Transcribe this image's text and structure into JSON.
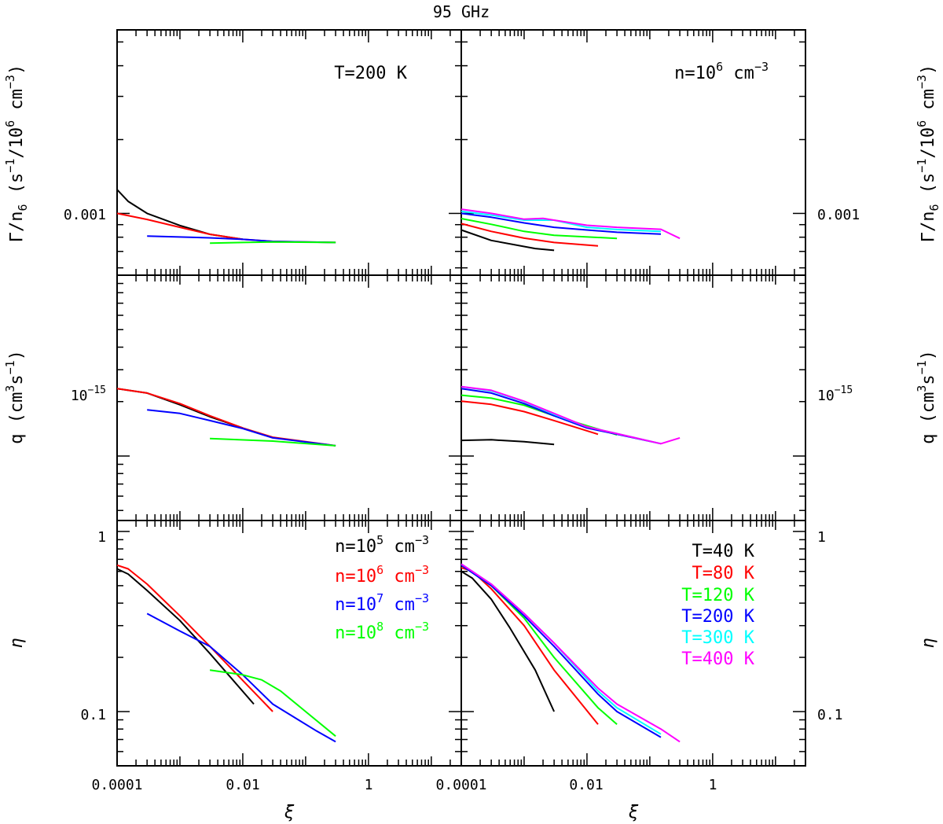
{
  "figure_title": "95 GHz",
  "ylabels": {
    "gamma": [
      "Γ/n",
      "6",
      " (s",
      "−1",
      "/10",
      "6",
      " cm",
      "−3",
      ")"
    ],
    "q": [
      "q  (cm",
      "3",
      "s",
      "−1",
      ")"
    ],
    "eta": "η"
  },
  "xlabel": "ξ",
  "xtick_labels": [
    "0.0001",
    "0.01",
    "1"
  ],
  "ytick_labels": {
    "gamma": "0.001",
    "q_base": "10",
    "q_exp": "−15",
    "eta": [
      "1",
      "0.1"
    ]
  },
  "panel_labels": {
    "left_top": "T=200 K",
    "right_top": {
      "base": "n=10",
      "exp": "6",
      "unit": " cm",
      "unit_exp": "−3"
    }
  },
  "legend_density": [
    {
      "base": "n=10",
      "exp": "5",
      "unit": " cm",
      "unit_exp": "−3",
      "color": "#000000"
    },
    {
      "base": "n=10",
      "exp": "6",
      "unit": " cm",
      "unit_exp": "−3",
      "color": "#ff0000"
    },
    {
      "base": "n=10",
      "exp": "7",
      "unit": " cm",
      "unit_exp": "−3",
      "color": "#0000ff"
    },
    {
      "base": "n=10",
      "exp": "8",
      "unit": " cm",
      "unit_exp": "−3",
      "color": "#00ff00"
    }
  ],
  "legend_temperature": [
    {
      "label": "T=40 K",
      "color": "#000000"
    },
    {
      "label": "T=80 K",
      "color": "#ff0000"
    },
    {
      "label": "T=120 K",
      "color": "#00ff00"
    },
    {
      "label": "T=200 K",
      "color": "#0000ff"
    },
    {
      "label": "T=300 K",
      "color": "#00ffff"
    },
    {
      "label": "T=400 K",
      "color": "#ff00ff"
    }
  ],
  "chart_data": [
    {
      "type": "line",
      "panel": "gamma-left",
      "title": "T=200 K",
      "xlabel": "",
      "ylabel": "Γ/n6 (s−1/10^6 cm−3)",
      "xscale": "log",
      "yscale": "log",
      "xlim": [
        0.0001,
        30
      ],
      "ylim": [
        0.00056,
        0.0056
      ],
      "series": [
        {
          "name": "n=10^5 cm^-3",
          "color": "#000000",
          "x": [
            0.0001,
            0.00015,
            0.0003,
            0.001,
            0.003,
            0.01
          ],
          "y": [
            0.00125,
            0.00112,
            0.001,
            0.000893,
            0.000822,
            0.000784
          ]
        },
        {
          "name": "n=10^6 cm^-3",
          "color": "#ff0000",
          "x": [
            0.0001,
            0.0003,
            0.001,
            0.003,
            0.01,
            0.03,
            0.3
          ],
          "y": [
            0.001,
            0.000945,
            0.000878,
            0.000822,
            0.000784,
            0.000769,
            0.000761
          ]
        },
        {
          "name": "n=10^7 cm^-3",
          "color": "#0000ff",
          "x": [
            0.0003,
            0.003,
            0.01,
            0.03,
            0.3
          ],
          "y": [
            0.000808,
            0.000795,
            0.000784,
            0.000769,
            0.000761
          ]
        },
        {
          "name": "n=10^8 cm^-3",
          "color": "#00ff00",
          "x": [
            0.003,
            0.01,
            0.03,
            0.3
          ],
          "y": [
            0.000756,
            0.000761,
            0.000765,
            0.000761
          ]
        }
      ]
    },
    {
      "type": "line",
      "panel": "gamma-right",
      "title": "n=10^6 cm^-3",
      "xlabel": "",
      "ylabel": "Γ/n6 (s−1/10^6 cm−3)",
      "xscale": "log",
      "yscale": "log",
      "xlim": [
        0.0001,
        30
      ],
      "ylim": [
        0.00056,
        0.0056
      ],
      "series": [
        {
          "name": "T=40 K",
          "color": "#000000",
          "x": [
            0.0001,
            0.0003,
            0.0015,
            0.003
          ],
          "y": [
            0.000856,
            0.000776,
            0.000719,
            0.000707
          ]
        },
        {
          "name": "T=80 K",
          "color": "#ff0000",
          "x": [
            0.0001,
            0.0003,
            0.001,
            0.003,
            0.015
          ],
          "y": [
            0.000909,
            0.000845,
            0.000793,
            0.000761,
            0.000737
          ]
        },
        {
          "name": "T=120 K",
          "color": "#00ff00",
          "x": [
            0.0001,
            0.0003,
            0.001,
            0.003,
            0.03
          ],
          "y": [
            0.000953,
            0.000903,
            0.000845,
            0.000815,
            0.000791
          ]
        },
        {
          "name": "T=200 K",
          "color": "#0000ff",
          "x": [
            0.0001,
            0.0003,
            0.001,
            0.003,
            0.01,
            0.03,
            0.15
          ],
          "y": [
            0.001,
            0.000965,
            0.000915,
            0.000878,
            0.000856,
            0.000838,
            0.000823
          ]
        },
        {
          "name": "T=300 K",
          "color": "#00ffff",
          "x": [
            0.0001,
            0.0003,
            0.001,
            0.003,
            0.01,
            0.03,
            0.15
          ],
          "y": [
            0.00102,
            0.000985,
            0.000939,
            0.000939,
            0.000878,
            0.00086,
            0.000844
          ]
        },
        {
          "name": "T=400 K",
          "color": "#ff00ff",
          "x": [
            0.0001,
            0.0003,
            0.001,
            0.002,
            0.003,
            0.01,
            0.03,
            0.15,
            0.3
          ],
          "y": [
            0.00104,
            0.001,
            0.000947,
            0.000955,
            0.000939,
            0.000895,
            0.000878,
            0.000862,
            0.000791
          ]
        }
      ]
    },
    {
      "type": "line",
      "panel": "q-left",
      "xlabel": "",
      "ylabel": "q (cm3 s−1)",
      "xscale": "log",
      "yscale": "log",
      "xlim": [
        0.0001,
        30
      ],
      "ylim": [
        4.4e-16,
        1e-14
      ],
      "series": [
        {
          "name": "n=10^5 cm^-3",
          "color": "#000000",
          "x": [
            0.0001,
            0.0003,
            0.001,
            0.003,
            0.01
          ],
          "y": [
            2.36e-15,
            2.23e-15,
            1.92e-15,
            1.65e-15,
            1.43e-15
          ]
        },
        {
          "name": "n=10^6 cm^-3",
          "color": "#ff0000",
          "x": [
            0.0001,
            0.0003,
            0.001,
            0.003,
            0.01,
            0.03,
            0.3
          ],
          "y": [
            2.36e-15,
            2.23e-15,
            1.95e-15,
            1.67e-15,
            1.43e-15,
            1.27e-15,
            1.14e-15
          ]
        },
        {
          "name": "n=10^7 cm^-3",
          "color": "#0000ff",
          "x": [
            0.0003,
            0.001,
            0.003,
            0.01,
            0.03,
            0.3
          ],
          "y": [
            1.8e-15,
            1.72e-15,
            1.57e-15,
            1.42e-15,
            1.26e-15,
            1.14e-15
          ]
        },
        {
          "name": "n=10^8 cm^-3",
          "color": "#00ff00",
          "x": [
            0.003,
            0.03,
            0.3
          ],
          "y": [
            1.25e-15,
            1.21e-15,
            1.14e-15
          ]
        }
      ]
    },
    {
      "type": "line",
      "panel": "q-right",
      "xlabel": "",
      "ylabel": "q (cm3 s−1)",
      "xscale": "log",
      "yscale": "log",
      "xlim": [
        0.0001,
        30
      ],
      "ylim": [
        4.4e-16,
        1e-14
      ],
      "series": [
        {
          "name": "T=40 K",
          "color": "#000000",
          "x": [
            0.0001,
            0.0003,
            0.001,
            0.003
          ],
          "y": [
            1.22e-15,
            1.23e-15,
            1.2e-15,
            1.16e-15
          ]
        },
        {
          "name": "T=80 K",
          "color": "#ff0000",
          "x": [
            0.0001,
            0.0003,
            0.001,
            0.003,
            0.015
          ],
          "y": [
            2.01e-15,
            1.93e-15,
            1.76e-15,
            1.57e-15,
            1.32e-15
          ]
        },
        {
          "name": "T=120 K",
          "color": "#00ff00",
          "x": [
            0.0001,
            0.0003,
            0.001,
            0.003,
            0.03
          ],
          "y": [
            2.17e-15,
            2.09e-15,
            1.91e-15,
            1.67e-15,
            1.31e-15
          ]
        },
        {
          "name": "T=200 K",
          "color": "#0000ff",
          "x": [
            0.0001,
            0.0003,
            0.001,
            0.003,
            0.01,
            0.03,
            0.15
          ],
          "y": [
            2.36e-15,
            2.23e-15,
            1.95e-15,
            1.67e-15,
            1.43e-15,
            1.32e-15,
            1.17e-15
          ]
        },
        {
          "name": "T=300 K",
          "color": "#00ffff",
          "x": [
            0.0001,
            0.0003,
            0.001,
            0.003,
            0.01,
            0.03,
            0.15
          ],
          "y": [
            2.42e-15,
            2.29e-15,
            2e-15,
            1.7e-15,
            1.45e-15,
            1.33e-15,
            1.17e-15
          ]
        },
        {
          "name": "T=400 K",
          "color": "#ff00ff",
          "x": [
            0.0001,
            0.0003,
            0.001,
            0.003,
            0.01,
            0.03,
            0.15,
            0.3
          ],
          "y": [
            2.42e-15,
            2.31e-15,
            2.01e-15,
            1.72e-15,
            1.45e-15,
            1.33e-15,
            1.17e-15,
            1.26e-15
          ]
        }
      ]
    },
    {
      "type": "line",
      "panel": "eta-left",
      "xlabel": "ξ",
      "ylabel": "η",
      "xscale": "log",
      "yscale": "log",
      "xlim": [
        0.0001,
        30
      ],
      "ylim": [
        0.05,
        1.15
      ],
      "series": [
        {
          "name": "n=10^5 cm^-3",
          "color": "#000000",
          "x": [
            0.0001,
            0.00015,
            0.0003,
            0.001,
            0.003,
            0.015
          ],
          "y": [
            0.62,
            0.58,
            0.47,
            0.32,
            0.21,
            0.11
          ]
        },
        {
          "name": "n=10^6 cm^-3",
          "color": "#ff0000",
          "x": [
            0.0001,
            0.00015,
            0.0003,
            0.001,
            0.003,
            0.03
          ],
          "y": [
            0.65,
            0.62,
            0.51,
            0.34,
            0.23,
            0.1
          ]
        },
        {
          "name": "n=10^7 cm^-3",
          "color": "#0000ff",
          "x": [
            0.0003,
            0.001,
            0.003,
            0.01,
            0.03,
            0.15,
            0.3
          ],
          "y": [
            0.35,
            0.28,
            0.23,
            0.16,
            0.11,
            0.078,
            0.068
          ]
        },
        {
          "name": "n=10^8 cm^-3",
          "color": "#00ff00",
          "x": [
            0.003,
            0.01,
            0.02,
            0.04,
            0.1,
            0.3
          ],
          "y": [
            0.17,
            0.16,
            0.15,
            0.13,
            0.1,
            0.073
          ]
        }
      ]
    },
    {
      "type": "line",
      "panel": "eta-right",
      "xlabel": "ξ",
      "ylabel": "η",
      "xscale": "log",
      "yscale": "log",
      "xlim": [
        0.0001,
        30
      ],
      "ylim": [
        0.05,
        1.15
      ],
      "series": [
        {
          "name": "T=40 K",
          "color": "#000000",
          "x": [
            0.0001,
            0.00015,
            0.0003,
            0.0006,
            0.0015,
            0.003
          ],
          "y": [
            0.6,
            0.55,
            0.42,
            0.29,
            0.17,
            0.1
          ]
        },
        {
          "name": "T=80 K",
          "color": "#ff0000",
          "x": [
            0.0001,
            0.00015,
            0.0003,
            0.001,
            0.003,
            0.015
          ],
          "y": [
            0.63,
            0.6,
            0.48,
            0.3,
            0.17,
            0.085
          ]
        },
        {
          "name": "T=120 K",
          "color": "#00ff00",
          "x": [
            0.0001,
            0.0003,
            0.001,
            0.003,
            0.015,
            0.03
          ],
          "y": [
            0.65,
            0.5,
            0.33,
            0.2,
            0.105,
            0.085
          ]
        },
        {
          "name": "T=200 K",
          "color": "#0000ff",
          "x": [
            0.0001,
            0.0003,
            0.001,
            0.003,
            0.015,
            0.03,
            0.15
          ],
          "y": [
            0.65,
            0.5,
            0.34,
            0.23,
            0.125,
            0.1,
            0.072
          ]
        },
        {
          "name": "T=300 K",
          "color": "#00ffff",
          "x": [
            0.0001,
            0.0003,
            0.001,
            0.003,
            0.015,
            0.03,
            0.15
          ],
          "y": [
            0.66,
            0.51,
            0.35,
            0.24,
            0.13,
            0.105,
            0.075
          ]
        },
        {
          "name": "T=400 K",
          "color": "#ff00ff",
          "x": [
            0.0001,
            0.0003,
            0.001,
            0.003,
            0.015,
            0.03,
            0.15,
            0.3
          ],
          "y": [
            0.66,
            0.51,
            0.35,
            0.24,
            0.135,
            0.11,
            0.08,
            0.068
          ]
        }
      ]
    }
  ]
}
